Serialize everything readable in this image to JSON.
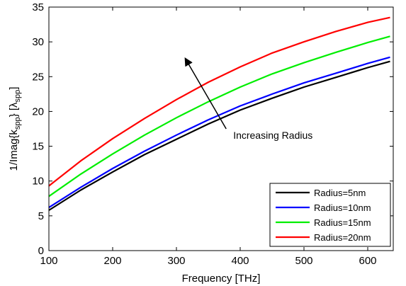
{
  "chart_data": {
    "type": "line",
    "title": "",
    "xlabel": "Frequency [THz]",
    "ylabel": {
      "main": "1/Imag{k",
      "sub1": "spp",
      "mid": "} [λ",
      "sub2": "spp",
      "end": "]"
    },
    "xlim": [
      100,
      640
    ],
    "ylim": [
      0,
      35
    ],
    "xticks": [
      100,
      200,
      300,
      400,
      500,
      600
    ],
    "yticks": [
      0,
      5,
      10,
      15,
      20,
      25,
      30,
      35
    ],
    "grid": false,
    "legend": "bottom-right",
    "x": [
      100,
      150,
      200,
      250,
      300,
      350,
      400,
      450,
      500,
      550,
      600,
      635
    ],
    "series": [
      {
        "name": "Radius=5nm",
        "color": "#000000",
        "values": [
          5.8,
          8.7,
          11.3,
          13.8,
          16.0,
          18.2,
          20.2,
          21.9,
          23.5,
          24.9,
          26.3,
          27.2
        ]
      },
      {
        "name": "Radius=10nm",
        "color": "#0000ff",
        "values": [
          6.2,
          9.1,
          11.8,
          14.3,
          16.6,
          18.8,
          20.8,
          22.5,
          24.1,
          25.5,
          26.9,
          27.8
        ]
      },
      {
        "name": "Radius=15nm",
        "color": "#00ee00",
        "values": [
          7.8,
          11.0,
          13.9,
          16.6,
          19.1,
          21.4,
          23.5,
          25.4,
          27.0,
          28.5,
          29.9,
          30.8
        ]
      },
      {
        "name": "Radius=20nm",
        "color": "#ff0000",
        "values": [
          9.3,
          12.9,
          16.1,
          19.0,
          21.7,
          24.2,
          26.4,
          28.4,
          30.0,
          31.5,
          32.8,
          33.5
        ]
      }
    ],
    "annotations": [
      {
        "text": "Increasing Radius",
        "arrow_from": [
          378,
          17.5
        ],
        "arrow_to": [
          314,
          27.6
        ]
      }
    ]
  }
}
